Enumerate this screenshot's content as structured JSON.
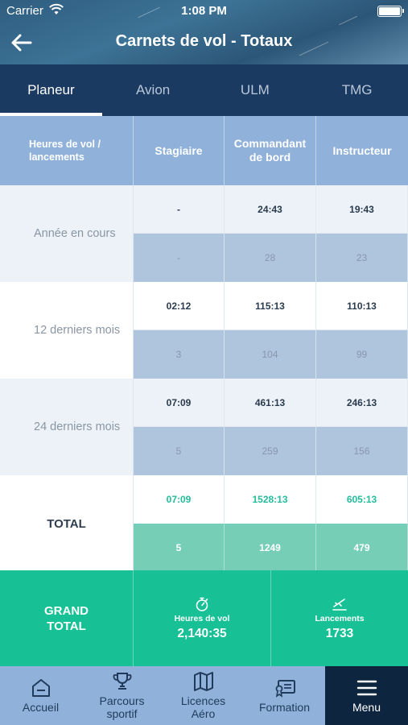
{
  "status_bar": {
    "carrier": "Carrier",
    "time": "1:08 PM"
  },
  "header": {
    "title": "Carnets de vol - Totaux"
  },
  "tabs": [
    {
      "label": "Planeur",
      "active": true
    },
    {
      "label": "Avion",
      "active": false
    },
    {
      "label": "ULM",
      "active": false
    },
    {
      "label": "TMG",
      "active": false
    }
  ],
  "table": {
    "headers": [
      "Heures de vol / lancements",
      "Stagiaire",
      "Commandant de bord",
      "Instructeur"
    ],
    "rows": [
      {
        "label": "Année en cours",
        "hours": [
          "-",
          "24:43",
          "19:43"
        ],
        "launches": [
          "-",
          "28",
          "23"
        ]
      },
      {
        "label": "12 derniers mois",
        "hours": [
          "02:12",
          "115:13",
          "110:13"
        ],
        "launches": [
          "3",
          "104",
          "99"
        ]
      },
      {
        "label": "24 derniers mois",
        "hours": [
          "07:09",
          "461:13",
          "246:13"
        ],
        "launches": [
          "5",
          "259",
          "156"
        ]
      }
    ],
    "total": {
      "label": "TOTAL",
      "hours": [
        "07:09",
        "1528:13",
        "605:13"
      ],
      "launches": [
        "5",
        "1249",
        "479"
      ]
    }
  },
  "grand_total": {
    "label": "GRAND TOTAL",
    "flight_hours_label": "Heures de vol",
    "flight_hours_value": "2,140:35",
    "launches_label": "Lancements",
    "launches_value": "1733"
  },
  "bottom_nav": [
    {
      "label": "Accueil",
      "icon": "home-icon"
    },
    {
      "label": "Parcours sportif",
      "icon": "trophy-icon"
    },
    {
      "label": "Licences Aéro",
      "icon": "map-icon"
    },
    {
      "label": "Formation",
      "icon": "certificate-icon"
    },
    {
      "label": "Menu",
      "icon": "hamburger-icon",
      "active": true
    }
  ],
  "colors": {
    "tab_bar": "#1a3a62",
    "header_row": "#90b2da",
    "total_accent": "#24bc9b",
    "grand_total_bg": "#17c195",
    "nav_bg": "#90b2da",
    "nav_active_bg": "#0e2540"
  }
}
